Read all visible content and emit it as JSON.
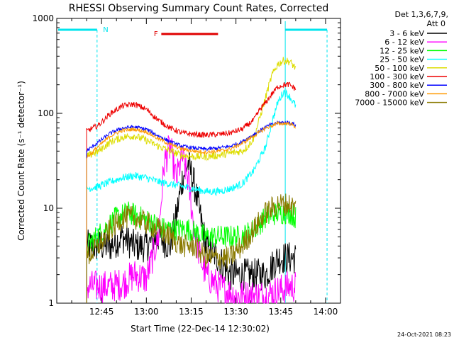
{
  "chart_data": {
    "type": "line",
    "title": "RHESSI Observing Summary Count Rates, Corrected",
    "xlabel": "Start Time (22-Dec-14 12:30:02)",
    "ylabel": "Corrected Count Rate (s⁻¹ detector⁻¹)",
    "yscale": "log",
    "ylim": [
      1,
      1000
    ],
    "xlim_minutes": [
      0,
      95
    ],
    "y_ticks": [
      "1",
      "10",
      "100",
      "1000"
    ],
    "x_ticks": [
      "12:45",
      "13:00",
      "13:15",
      "13:30",
      "13:45",
      "14:00"
    ],
    "detectors_line1": "Det 1,3,6,7,9,",
    "detectors_line2": "Att 0",
    "legend_position": "top-right",
    "footer_date": "24-Oct-2021 08:23",
    "flags": [
      {
        "label": "N",
        "color": "#00e5ee"
      },
      {
        "label": "F",
        "color": "#e00000"
      }
    ],
    "series": [
      {
        "name": "3 - 6 keV",
        "color": "#000000",
        "t": [
          10,
          18,
          22,
          26,
          30,
          34,
          38,
          40,
          42,
          44,
          46,
          50,
          54,
          58,
          62,
          66,
          70,
          74,
          78,
          80
        ],
        "v": [
          4,
          4,
          5,
          4,
          4,
          5,
          4,
          8,
          20,
          30,
          18,
          4,
          3,
          2,
          2,
          2,
          2,
          3,
          3,
          3
        ]
      },
      {
        "name": "6 - 12 keV",
        "color": "#ff00ff",
        "t": [
          10,
          18,
          22,
          26,
          30,
          34,
          36,
          38,
          40,
          42,
          44,
          46,
          48,
          50,
          54,
          60,
          70,
          78,
          80
        ],
        "v": [
          1.5,
          1.5,
          1.6,
          2,
          1.8,
          5,
          30,
          45,
          20,
          35,
          20,
          6,
          3,
          2,
          1.5,
          1.2,
          1.2,
          1.5,
          1.5
        ]
      },
      {
        "name": "12 - 25 keV",
        "color": "#00ff00",
        "t": [
          10,
          16,
          20,
          24,
          28,
          32,
          36,
          40,
          44,
          50,
          56,
          62,
          66,
          70,
          74,
          78,
          80
        ],
        "v": [
          4,
          6,
          8,
          9,
          8,
          7,
          6,
          6,
          6,
          5,
          5,
          5,
          6,
          8,
          9,
          9,
          8
        ]
      },
      {
        "name": "25 - 50 keV",
        "color": "#00ffff",
        "t": [
          10,
          14,
          18,
          22,
          26,
          30,
          34,
          38,
          42,
          46,
          50,
          54,
          58,
          62,
          66,
          70,
          72,
          74,
          76,
          78,
          80
        ],
        "v": [
          16,
          17,
          19,
          21,
          22,
          21,
          19,
          18,
          17,
          16,
          15,
          15,
          16,
          18,
          25,
          45,
          80,
          130,
          170,
          150,
          120
        ]
      },
      {
        "name": "50 - 100 keV",
        "color": "#dddd00",
        "t": [
          10,
          14,
          18,
          22,
          26,
          30,
          34,
          38,
          42,
          46,
          50,
          54,
          58,
          62,
          64,
          66,
          68,
          70,
          72,
          74,
          76,
          78,
          80
        ],
        "v": [
          35,
          40,
          50,
          56,
          58,
          52,
          45,
          40,
          36,
          35,
          35,
          36,
          38,
          40,
          45,
          55,
          90,
          150,
          250,
          330,
          360,
          350,
          300
        ]
      },
      {
        "name": "100 - 300 keV",
        "color": "#ee0000",
        "t": [
          10,
          14,
          18,
          22,
          26,
          30,
          34,
          38,
          42,
          46,
          50,
          54,
          58,
          62,
          66,
          68,
          70,
          72,
          74,
          76,
          78,
          80
        ],
        "v": [
          65,
          75,
          100,
          120,
          125,
          110,
          85,
          70,
          62,
          60,
          59,
          60,
          62,
          68,
          85,
          110,
          130,
          160,
          190,
          200,
          200,
          180
        ]
      },
      {
        "name": "300 - 800 keV",
        "color": "#0000ff",
        "t": [
          10,
          14,
          18,
          22,
          26,
          30,
          34,
          38,
          42,
          46,
          50,
          54,
          58,
          62,
          66,
          70,
          74,
          78,
          80
        ],
        "v": [
          40,
          50,
          62,
          70,
          72,
          68,
          58,
          50,
          45,
          43,
          42,
          43,
          45,
          50,
          60,
          72,
          80,
          80,
          75
        ]
      },
      {
        "name": "800 - 7000 keV",
        "color": "#ff9900",
        "t": [
          10,
          14,
          18,
          22,
          26,
          30,
          34,
          38,
          42,
          46,
          50,
          54,
          58,
          62,
          66,
          70,
          74,
          78,
          80
        ],
        "v": [
          34,
          45,
          58,
          66,
          68,
          64,
          54,
          47,
          42,
          40,
          39,
          40,
          42,
          48,
          58,
          70,
          78,
          78,
          72
        ]
      },
      {
        "name": "7000 - 15000 keV",
        "color": "#8a7a00",
        "t": [
          10,
          14,
          18,
          22,
          26,
          30,
          34,
          38,
          42,
          46,
          50,
          54,
          58,
          62,
          66,
          70,
          74,
          78,
          80
        ],
        "v": [
          3,
          4,
          6,
          8,
          8,
          7,
          6,
          5,
          4,
          4,
          3,
          3,
          3,
          4,
          6,
          9,
          11,
          11,
          10
        ]
      }
    ]
  }
}
